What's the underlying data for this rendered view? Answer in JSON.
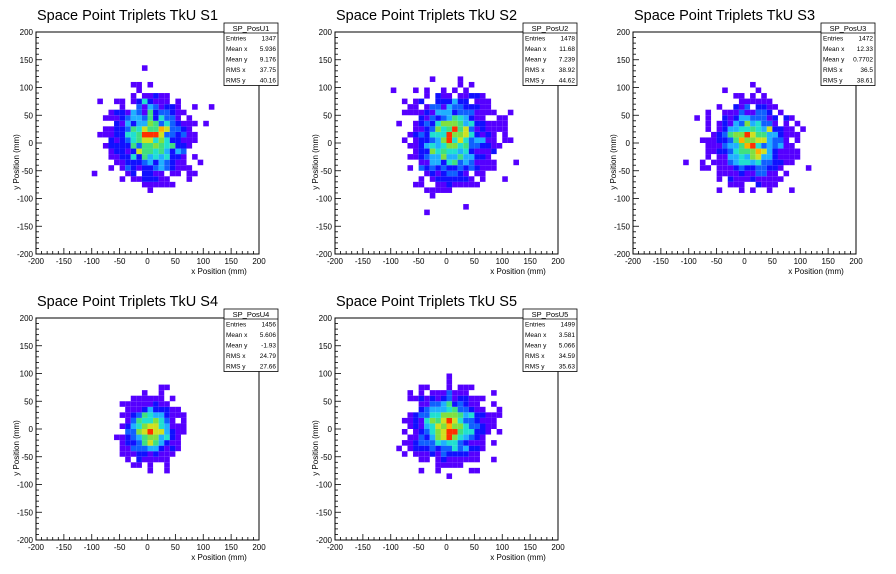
{
  "chart_data": [
    {
      "type": "heatmap",
      "title": "Space Point Triplets TkU S1",
      "xlabel": "x Position (mm)",
      "ylabel": "y Position (mm)",
      "xlim": [
        -200,
        200
      ],
      "ylim": [
        -200,
        200
      ],
      "xticks": [
        "-200",
        "-150",
        "-100",
        "-50",
        "0",
        "50",
        "100",
        "150",
        "200"
      ],
      "yticks": [
        "-200",
        "-150",
        "-100",
        "-50",
        "0",
        "50",
        "100",
        "150",
        "200"
      ],
      "stats": {
        "name": "SP_PosU1",
        "rows": [
          {
            "label": "Entries",
            "value": "1347"
          },
          {
            "label": "Mean x",
            "value": "5.936"
          },
          {
            "label": "Mean y",
            "value": "9.176"
          },
          {
            "label": "RMS x",
            "value": "37.75"
          },
          {
            "label": "RMS y",
            "value": "40.16"
          }
        ]
      },
      "entries": 1347,
      "mean_x": 5.936,
      "mean_y": 9.176,
      "rms_x": 37.75,
      "rms_y": 40.16,
      "bin_width": 10
    },
    {
      "type": "heatmap",
      "title": "Space Point Triplets TkU S2",
      "xlabel": "x Position (mm)",
      "ylabel": "y Position (mm)",
      "xlim": [
        -200,
        200
      ],
      "ylim": [
        -200,
        200
      ],
      "xticks": [
        "-200",
        "-150",
        "-100",
        "-50",
        "0",
        "50",
        "100",
        "150",
        "200"
      ],
      "yticks": [
        "-200",
        "-150",
        "-100",
        "-50",
        "0",
        "50",
        "100",
        "150",
        "200"
      ],
      "stats": {
        "name": "SP_PosU2",
        "rows": [
          {
            "label": "Entries",
            "value": "1478"
          },
          {
            "label": "Mean x",
            "value": "11.68"
          },
          {
            "label": "Mean y",
            "value": "7.239"
          },
          {
            "label": "RMS x",
            "value": "38.92"
          },
          {
            "label": "RMS y",
            "value": "44.62"
          }
        ]
      },
      "entries": 1478,
      "mean_x": 11.68,
      "mean_y": 7.239,
      "rms_x": 38.92,
      "rms_y": 44.62,
      "bin_width": 10
    },
    {
      "type": "heatmap",
      "title": "Space Point Triplets TkU S3",
      "xlabel": "x Position (mm)",
      "ylabel": "y Position (mm)",
      "xlim": [
        -200,
        200
      ],
      "ylim": [
        -200,
        200
      ],
      "xticks": [
        "-200",
        "-150",
        "-100",
        "-50",
        "0",
        "50",
        "100",
        "150",
        "200"
      ],
      "yticks": [
        "-200",
        "-150",
        "-100",
        "-50",
        "0",
        "50",
        "100",
        "150",
        "200"
      ],
      "stats": {
        "name": "SP_PosU3",
        "rows": [
          {
            "label": "Entries",
            "value": "1472"
          },
          {
            "label": "Mean x",
            "value": "12.33"
          },
          {
            "label": "Mean y",
            "value": "0.7702"
          },
          {
            "label": "RMS x",
            "value": "36.5"
          },
          {
            "label": "RMS y",
            "value": "38.61"
          }
        ]
      },
      "entries": 1472,
      "mean_x": 12.33,
      "mean_y": 0.7702,
      "rms_x": 36.5,
      "rms_y": 38.61,
      "bin_width": 10
    },
    {
      "type": "heatmap",
      "title": "Space Point Triplets TkU S4",
      "xlabel": "x Position (mm)",
      "ylabel": "y Position (mm)",
      "xlim": [
        -200,
        200
      ],
      "ylim": [
        -200,
        200
      ],
      "xticks": [
        "-200",
        "-150",
        "-100",
        "-50",
        "0",
        "50",
        "100",
        "150",
        "200"
      ],
      "yticks": [
        "-200",
        "-150",
        "-100",
        "-50",
        "0",
        "50",
        "100",
        "150",
        "200"
      ],
      "stats": {
        "name": "SP_PosU4",
        "rows": [
          {
            "label": "Entries",
            "value": "1456"
          },
          {
            "label": "Mean x",
            "value": "5.606"
          },
          {
            "label": "Mean y",
            "value": "-1.93"
          },
          {
            "label": "RMS x",
            "value": "24.79"
          },
          {
            "label": "RMS y",
            "value": "27.66"
          }
        ]
      },
      "entries": 1456,
      "mean_x": 5.606,
      "mean_y": -1.93,
      "rms_x": 24.79,
      "rms_y": 27.66,
      "bin_width": 10
    },
    {
      "type": "heatmap",
      "title": "Space Point Triplets TkU S5",
      "xlabel": "x Position (mm)",
      "ylabel": "y Position (mm)",
      "xlim": [
        -200,
        200
      ],
      "ylim": [
        -200,
        200
      ],
      "xticks": [
        "-200",
        "-150",
        "-100",
        "-50",
        "0",
        "50",
        "100",
        "150",
        "200"
      ],
      "yticks": [
        "-200",
        "-150",
        "-100",
        "-50",
        "0",
        "50",
        "100",
        "150",
        "200"
      ],
      "stats": {
        "name": "SP_PosU5",
        "rows": [
          {
            "label": "Entries",
            "value": "1499"
          },
          {
            "label": "Mean x",
            "value": "3.581"
          },
          {
            "label": "Mean y",
            "value": "5.066"
          },
          {
            "label": "RMS x",
            "value": "34.59"
          },
          {
            "label": "RMS y",
            "value": "35.63"
          }
        ]
      },
      "entries": 1499,
      "mean_x": 3.581,
      "mean_y": 5.066,
      "rms_x": 34.59,
      "rms_y": 35.63,
      "bin_width": 10
    }
  ],
  "colors": {
    "background": "#ffffff",
    "axis": "#000000",
    "palette": [
      "#5500ff",
      "#1010ff",
      "#1060ff",
      "#20b0ff",
      "#20e0d0",
      "#40e080",
      "#80e040",
      "#d0e020",
      "#ffb000",
      "#ff3000"
    ]
  }
}
